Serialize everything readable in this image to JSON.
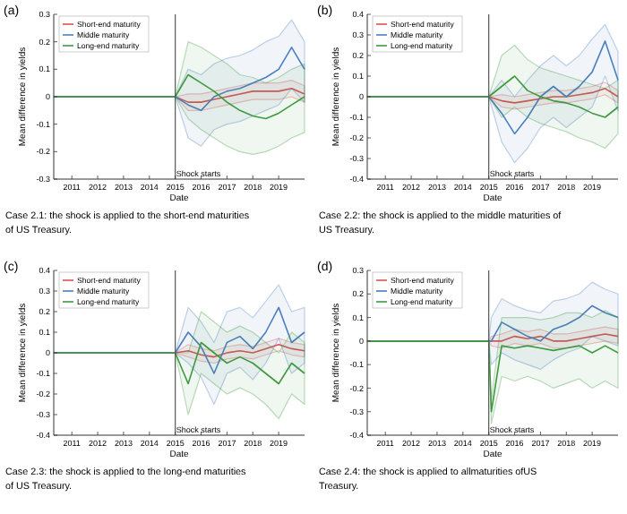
{
  "chart_data": [
    {
      "type": "line",
      "title": "(a)",
      "xlabel": "Date",
      "ylabel": "Mean difference in yields",
      "legend": "top left",
      "xlim": [
        2010.3,
        2020
      ],
      "xticks": [
        2011,
        2012,
        2013,
        2014,
        2015,
        2016,
        2017,
        2018,
        2019
      ],
      "ylim": [
        -0.3,
        0.3
      ],
      "yticks": [
        -0.3,
        -0.2,
        -0.1,
        0,
        0.1,
        0.2,
        0.3
      ],
      "x": [
        2010.3,
        2015,
        2015.5,
        2016,
        2016.5,
        2017,
        2017.5,
        2018,
        2018.5,
        2019,
        2019.5,
        2020
      ],
      "ref_lines": [
        {
          "axis": "x",
          "value": 2015,
          "label": "Shock starts",
          "color": "#555555"
        }
      ],
      "annotations": [
        "Case 2.1: the shock is applied to the short-end maturities of US Treasury."
      ],
      "series": [
        {
          "name": "Short-end maturity",
          "color": "#d9534f",
          "values": [
            0,
            0,
            -0.02,
            -0.02,
            -0.01,
            0,
            0.01,
            0.02,
            0.02,
            0.02,
            0.03,
            0.01
          ],
          "lower": [
            0,
            0,
            -0.05,
            -0.05,
            -0.04,
            -0.03,
            -0.02,
            -0.01,
            -0.01,
            -0.01,
            0,
            -0.02
          ],
          "upper": [
            0,
            0,
            0.01,
            0.01,
            0.02,
            0.03,
            0.04,
            0.05,
            0.05,
            0.05,
            0.06,
            0.04
          ]
        },
        {
          "name": "Middle maturity",
          "color": "#4a7fc1",
          "values": [
            0,
            0,
            -0.03,
            -0.05,
            0,
            0.02,
            0.03,
            0.05,
            0.07,
            0.1,
            0.18,
            0.1
          ],
          "lower": [
            0,
            0,
            -0.15,
            -0.18,
            -0.12,
            -0.1,
            -0.09,
            -0.07,
            -0.05,
            -0.03,
            0.03,
            -0.02
          ],
          "upper": [
            0,
            0,
            0.1,
            0.08,
            0.12,
            0.14,
            0.15,
            0.17,
            0.2,
            0.22,
            0.28,
            0.2
          ]
        },
        {
          "name": "Long-end maturity",
          "color": "#3f9a3f",
          "values": [
            0,
            0,
            0.08,
            0.05,
            0.02,
            -0.02,
            -0.05,
            -0.07,
            -0.08,
            -0.06,
            -0.03,
            0
          ],
          "lower": [
            0,
            0,
            -0.08,
            -0.12,
            -0.15,
            -0.18,
            -0.2,
            -0.21,
            -0.2,
            -0.18,
            -0.15,
            -0.13
          ],
          "upper": [
            0,
            0,
            0.2,
            0.18,
            0.15,
            0.12,
            0.08,
            0.07,
            0.05,
            0.07,
            0.1,
            0.12
          ]
        }
      ]
    },
    {
      "type": "line",
      "title": "(b)",
      "xlabel": "Date",
      "ylabel": "Mean difference in yields",
      "legend": "top left",
      "xlim": [
        2010.3,
        2020
      ],
      "xticks": [
        2011,
        2012,
        2013,
        2014,
        2015,
        2016,
        2017,
        2018,
        2019
      ],
      "ylim": [
        -0.4,
        0.4
      ],
      "yticks": [
        -0.4,
        -0.3,
        -0.2,
        -0.1,
        0,
        0.1,
        0.2,
        0.3,
        0.4
      ],
      "x": [
        2010.3,
        2015,
        2015.5,
        2016,
        2016.5,
        2017,
        2017.5,
        2018,
        2018.5,
        2019,
        2019.5,
        2020
      ],
      "ref_lines": [
        {
          "axis": "x",
          "value": 2015,
          "label": "Shock starts",
          "color": "#555555"
        }
      ],
      "annotations": [
        "Case 2.2: the shock is applied to the middle maturities of US Treasury."
      ],
      "series": [
        {
          "name": "Short-end maturity",
          "color": "#d9534f",
          "values": [
            0,
            0,
            -0.02,
            -0.03,
            -0.02,
            -0.01,
            0,
            0,
            0.01,
            0.02,
            0.04,
            0
          ],
          "lower": [
            0,
            0,
            -0.05,
            -0.06,
            -0.05,
            -0.04,
            -0.03,
            -0.03,
            -0.02,
            -0.01,
            0.01,
            -0.03
          ],
          "upper": [
            0,
            0,
            0.01,
            0,
            0.01,
            0.02,
            0.03,
            0.03,
            0.04,
            0.05,
            0.07,
            0.03
          ]
        },
        {
          "name": "Middle maturity",
          "color": "#4a7fc1",
          "values": [
            0,
            0,
            -0.08,
            -0.18,
            -0.1,
            0,
            0.05,
            0,
            0.05,
            0.12,
            0.27,
            0.08
          ],
          "lower": [
            0,
            0,
            -0.22,
            -0.32,
            -0.25,
            -0.15,
            -0.1,
            -0.15,
            -0.1,
            -0.05,
            0.1,
            -0.07
          ],
          "upper": [
            0,
            0,
            0.08,
            0,
            0.08,
            0.15,
            0.2,
            0.15,
            0.2,
            0.28,
            0.35,
            0.22
          ]
        },
        {
          "name": "Long-end maturity",
          "color": "#3f9a3f",
          "values": [
            0,
            0,
            0.05,
            0.1,
            0.03,
            0,
            -0.02,
            -0.03,
            -0.05,
            -0.08,
            -0.1,
            -0.05
          ],
          "lower": [
            0,
            0,
            -0.1,
            -0.05,
            -0.1,
            -0.13,
            -0.15,
            -0.17,
            -0.2,
            -0.22,
            -0.25,
            -0.18
          ],
          "upper": [
            0,
            0,
            0.2,
            0.25,
            0.18,
            0.14,
            0.12,
            0.1,
            0.08,
            0.06,
            0.04,
            0.08
          ]
        }
      ]
    },
    {
      "type": "line",
      "title": "(c)",
      "xlabel": "Date",
      "ylabel": "Mean difference in yields",
      "legend": "top left",
      "xlim": [
        2010.3,
        2020
      ],
      "xticks": [
        2011,
        2012,
        2013,
        2014,
        2015,
        2016,
        2017,
        2018,
        2019
      ],
      "ylim": [
        -0.4,
        0.4
      ],
      "yticks": [
        -0.4,
        -0.3,
        -0.2,
        -0.1,
        0,
        0.1,
        0.2,
        0.3,
        0.4
      ],
      "x": [
        2010.3,
        2015,
        2015.5,
        2016,
        2016.5,
        2017,
        2017.5,
        2018,
        2018.5,
        2019,
        2019.5,
        2020
      ],
      "ref_lines": [
        {
          "axis": "x",
          "value": 2015,
          "label": "Shock starts",
          "color": "#555555"
        }
      ],
      "annotations": [
        "Case 2.3: the shock is applied to the long-end maturities of US Treasury."
      ],
      "series": [
        {
          "name": "Short-end maturity",
          "color": "#d9534f",
          "values": [
            0,
            0,
            0.01,
            -0.01,
            -0.02,
            0,
            0.01,
            0,
            0.02,
            0.04,
            0.02,
            0.01
          ],
          "lower": [
            0,
            0,
            -0.02,
            -0.04,
            -0.05,
            -0.03,
            -0.02,
            -0.03,
            -0.01,
            0.01,
            -0.01,
            -0.02
          ],
          "upper": [
            0,
            0,
            0.04,
            0.02,
            0.01,
            0.03,
            0.04,
            0.03,
            0.05,
            0.07,
            0.05,
            0.04
          ]
        },
        {
          "name": "Middle maturity",
          "color": "#4a7fc1",
          "values": [
            0,
            0,
            0.1,
            0.03,
            -0.1,
            0.05,
            0.08,
            0.02,
            0.1,
            0.22,
            0.05,
            0.1
          ],
          "lower": [
            0,
            0,
            -0.05,
            -0.12,
            -0.25,
            -0.1,
            -0.07,
            -0.13,
            -0.05,
            0.07,
            -0.1,
            -0.05
          ],
          "upper": [
            0,
            0,
            0.22,
            0.15,
            0.05,
            0.2,
            0.22,
            0.17,
            0.25,
            0.33,
            0.2,
            0.22
          ]
        },
        {
          "name": "Long-end maturity",
          "color": "#3f9a3f",
          "values": [
            0,
            0,
            -0.15,
            0.05,
            0,
            -0.05,
            -0.02,
            -0.05,
            -0.1,
            -0.15,
            -0.05,
            -0.1
          ],
          "lower": [
            0,
            0,
            -0.3,
            -0.1,
            -0.15,
            -0.2,
            -0.17,
            -0.2,
            -0.25,
            -0.32,
            -0.2,
            -0.25
          ],
          "upper": [
            0,
            0,
            0,
            0.2,
            0.15,
            0.1,
            0.13,
            0.1,
            0.05,
            0,
            0.1,
            0.05
          ]
        }
      ]
    },
    {
      "type": "line",
      "title": "(d)",
      "xlabel": "Date",
      "ylabel": "Mean difference in yields",
      "legend": "top left",
      "xlim": [
        2010.3,
        2020
      ],
      "xticks": [
        2011,
        2012,
        2013,
        2014,
        2015,
        2016,
        2017,
        2018,
        2019
      ],
      "ylim": [
        -0.4,
        0.3
      ],
      "yticks": [
        -0.4,
        -0.3,
        -0.2,
        -0.1,
        0,
        0.1,
        0.2,
        0.3
      ],
      "x": [
        2010.3,
        2015,
        2015.1,
        2015.5,
        2016,
        2016.5,
        2017,
        2017.5,
        2018,
        2018.5,
        2019,
        2019.5,
        2020
      ],
      "ref_lines": [
        {
          "axis": "x",
          "value": 2015,
          "label": "Shock starts",
          "color": "#555555"
        }
      ],
      "annotations": [
        "Case 2.4: the shock is applied to allmaturities ofUS Treasury."
      ],
      "series": [
        {
          "name": "Short-end maturity",
          "color": "#d9534f",
          "values": [
            0,
            0,
            0,
            0,
            0.02,
            0.01,
            0.02,
            0,
            0,
            0.01,
            0.02,
            0.03,
            0.02
          ],
          "lower": [
            0,
            0,
            -0.02,
            -0.03,
            -0.01,
            -0.02,
            -0.01,
            -0.03,
            -0.03,
            -0.02,
            -0.01,
            0,
            -0.01
          ],
          "upper": [
            0,
            0,
            0.02,
            0.03,
            0.05,
            0.04,
            0.05,
            0.03,
            0.03,
            0.04,
            0.05,
            0.06,
            0.05
          ]
        },
        {
          "name": "Middle maturity",
          "color": "#4a7fc1",
          "values": [
            0,
            0,
            0,
            0.08,
            0.05,
            0.02,
            0,
            0.05,
            0.07,
            0.1,
            0.15,
            0.12,
            0.1
          ],
          "lower": [
            0,
            0,
            -0.1,
            -0.05,
            -0.08,
            -0.1,
            -0.12,
            -0.08,
            -0.05,
            -0.03,
            0.02,
            0,
            -0.02
          ],
          "upper": [
            0,
            0,
            0.1,
            0.18,
            0.15,
            0.13,
            0.12,
            0.17,
            0.18,
            0.2,
            0.25,
            0.22,
            0.2
          ]
        },
        {
          "name": "Long-end maturity",
          "color": "#3f9a3f",
          "values": [
            0,
            0,
            -0.3,
            -0.02,
            -0.03,
            -0.02,
            -0.03,
            -0.04,
            -0.03,
            -0.02,
            -0.05,
            -0.02,
            -0.05
          ],
          "lower": [
            0,
            0,
            -0.35,
            -0.15,
            -0.17,
            -0.15,
            -0.17,
            -0.2,
            -0.18,
            -0.16,
            -0.2,
            -0.17,
            -0.2
          ],
          "upper": [
            0,
            0,
            -0.25,
            0.1,
            0.1,
            0.1,
            0.09,
            0.1,
            0.12,
            0.12,
            0.1,
            0.13,
            0.1
          ]
        }
      ]
    }
  ]
}
